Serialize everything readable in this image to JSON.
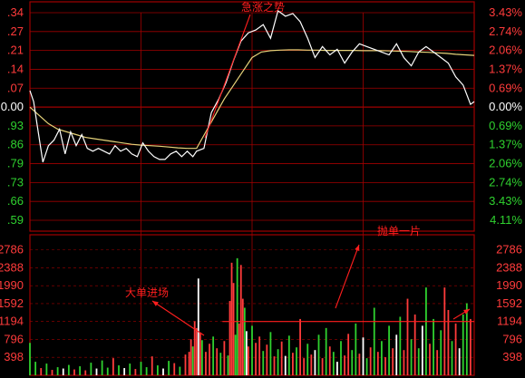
{
  "colors": {
    "background": "#000000",
    "frame": "#a00000",
    "grid": "#a00000",
    "price_line": "#ffffff",
    "avg_line": "#e6d37a",
    "up": "#ff3b3b",
    "down": "#2fd12f",
    "neutral": "#ffffff",
    "annotation": "#ff1e1e"
  },
  "chart_data": {
    "type": "line",
    "price_axis": {
      "base_value": "0.00",
      "left_labels": [
        ".34",
        ".27",
        ".21",
        ".14",
        ".07",
        "0.00",
        ".93",
        ".86",
        ".79",
        ".73",
        ".66",
        ".59"
      ],
      "right_labels": [
        "3.43%",
        "2.74%",
        "2.06%",
        "1.37%",
        "0.69%",
        "0.00%",
        "0.69%",
        "1.37%",
        "2.06%",
        "2.74%",
        "3.43%",
        "4.11%"
      ],
      "percent_range": [
        -4.11,
        3.43
      ]
    },
    "volume_axis": {
      "labels": [
        "2786",
        "2388",
        "1990",
        "1592",
        "1194",
        "796",
        "398"
      ],
      "max": 3000
    },
    "price_series": {
      "name": "",
      "x": [
        0,
        2,
        4,
        7,
        10,
        13,
        16,
        19,
        22,
        25,
        28,
        31,
        34,
        37,
        40,
        43,
        46,
        49,
        52,
        55,
        58,
        61,
        64,
        67,
        70,
        73,
        76,
        79,
        82,
        85,
        88,
        90,
        94,
        98,
        102,
        106,
        110,
        114,
        118,
        122,
        126,
        130,
        134,
        138,
        142,
        146,
        150,
        154,
        158,
        162,
        166,
        170,
        174,
        178,
        182,
        186,
        190,
        194,
        198,
        202,
        206,
        210,
        214,
        218,
        222,
        226,
        230,
        234,
        238,
        240
      ],
      "values": [
        0.6,
        0.2,
        -0.7,
        -2.0,
        -1.4,
        -1.2,
        -0.8,
        -1.7,
        -0.9,
        -1.4,
        -1.0,
        -1.5,
        -1.6,
        -1.5,
        -1.6,
        -1.7,
        -1.4,
        -1.6,
        -1.5,
        -1.7,
        -1.8,
        -1.3,
        -1.6,
        -1.8,
        -1.9,
        -1.9,
        -1.7,
        -1.6,
        -1.8,
        -1.6,
        -1.8,
        -1.6,
        -1.5,
        -0.2,
        0.3,
        0.9,
        1.7,
        2.4,
        2.7,
        2.8,
        3.0,
        2.5,
        3.5,
        3.3,
        3.4,
        3.1,
        2.5,
        1.8,
        2.2,
        1.9,
        2.1,
        1.6,
        2.0,
        2.3,
        2.2,
        2.1,
        2.0,
        1.9,
        2.3,
        1.8,
        1.5,
        2.0,
        2.2,
        2.0,
        1.8,
        1.6,
        1.1,
        0.8,
        0.1,
        0.2
      ]
    },
    "avg_series": {
      "name": "",
      "x": [
        0,
        5,
        10,
        15,
        20,
        25,
        30,
        35,
        40,
        45,
        50,
        55,
        60,
        65,
        70,
        75,
        80,
        85,
        90,
        95,
        100,
        105,
        110,
        115,
        120,
        125,
        130,
        135,
        140,
        145,
        150,
        155,
        160,
        165,
        170,
        175,
        180,
        185,
        190,
        195,
        200,
        205,
        210,
        215,
        220,
        225,
        230,
        235,
        240
      ],
      "values": [
        0.0,
        -0.3,
        -0.6,
        -0.8,
        -0.9,
        -1.0,
        -1.1,
        -1.15,
        -1.2,
        -1.25,
        -1.3,
        -1.35,
        -1.38,
        -1.4,
        -1.42,
        -1.45,
        -1.48,
        -1.5,
        -1.5,
        -0.9,
        -0.3,
        0.3,
        0.8,
        1.3,
        1.8,
        2.0,
        2.05,
        2.07,
        2.08,
        2.08,
        2.07,
        2.07,
        2.06,
        2.06,
        2.06,
        2.06,
        2.05,
        2.05,
        2.05,
        2.04,
        2.03,
        2.02,
        2.0,
        1.99,
        1.97,
        1.95,
        1.92,
        1.9,
        1.88
      ]
    },
    "volume_threshold": 1194,
    "volume_bars": [
      {
        "x": 0,
        "v": 720,
        "c": "down"
      },
      {
        "x": 3,
        "v": 300,
        "c": "down"
      },
      {
        "x": 6,
        "v": 160,
        "c": "up"
      },
      {
        "x": 9,
        "v": 260,
        "c": "down"
      },
      {
        "x": 12,
        "v": 120,
        "c": "up"
      },
      {
        "x": 15,
        "v": 180,
        "c": "down"
      },
      {
        "x": 18,
        "v": 150,
        "c": "neutral"
      },
      {
        "x": 21,
        "v": 230,
        "c": "down"
      },
      {
        "x": 24,
        "v": 130,
        "c": "up"
      },
      {
        "x": 27,
        "v": 200,
        "c": "down"
      },
      {
        "x": 30,
        "v": 110,
        "c": "up"
      },
      {
        "x": 33,
        "v": 280,
        "c": "down"
      },
      {
        "x": 36,
        "v": 150,
        "c": "neutral"
      },
      {
        "x": 39,
        "v": 330,
        "c": "down"
      },
      {
        "x": 42,
        "v": 170,
        "c": "down"
      },
      {
        "x": 45,
        "v": 380,
        "c": "up"
      },
      {
        "x": 48,
        "v": 220,
        "c": "down"
      },
      {
        "x": 51,
        "v": 160,
        "c": "neutral"
      },
      {
        "x": 54,
        "v": 260,
        "c": "down"
      },
      {
        "x": 57,
        "v": 140,
        "c": "up"
      },
      {
        "x": 60,
        "v": 300,
        "c": "down"
      },
      {
        "x": 63,
        "v": 180,
        "c": "down"
      },
      {
        "x": 66,
        "v": 420,
        "c": "up"
      },
      {
        "x": 69,
        "v": 220,
        "c": "down"
      },
      {
        "x": 72,
        "v": 150,
        "c": "neutral"
      },
      {
        "x": 75,
        "v": 320,
        "c": "down"
      },
      {
        "x": 78,
        "v": 270,
        "c": "up"
      },
      {
        "x": 81,
        "v": 190,
        "c": "down"
      },
      {
        "x": 84,
        "v": 460,
        "c": "up"
      },
      {
        "x": 86,
        "v": 520,
        "c": "up"
      },
      {
        "x": 87,
        "v": 800,
        "c": "up"
      },
      {
        "x": 88,
        "v": 640,
        "c": "down"
      },
      {
        "x": 89,
        "v": 1200,
        "c": "up"
      },
      {
        "x": 90,
        "v": 1050,
        "c": "up"
      },
      {
        "x": 91,
        "v": 2150,
        "c": "neutral"
      },
      {
        "x": 92,
        "v": 950,
        "c": "up"
      },
      {
        "x": 93,
        "v": 780,
        "c": "down"
      },
      {
        "x": 95,
        "v": 520,
        "c": "up"
      },
      {
        "x": 97,
        "v": 700,
        "c": "up"
      },
      {
        "x": 99,
        "v": 860,
        "c": "down"
      },
      {
        "x": 101,
        "v": 600,
        "c": "up"
      },
      {
        "x": 103,
        "v": 500,
        "c": "down"
      },
      {
        "x": 105,
        "v": 760,
        "c": "up"
      },
      {
        "x": 107,
        "v": 440,
        "c": "down"
      },
      {
        "x": 108,
        "v": 1650,
        "c": "up"
      },
      {
        "x": 109,
        "v": 2500,
        "c": "up"
      },
      {
        "x": 110,
        "v": 2050,
        "c": "up"
      },
      {
        "x": 111,
        "v": 900,
        "c": "down"
      },
      {
        "x": 112,
        "v": 2600,
        "c": "down"
      },
      {
        "x": 113,
        "v": 1150,
        "c": "up"
      },
      {
        "x": 114,
        "v": 2450,
        "c": "up"
      },
      {
        "x": 115,
        "v": 1700,
        "c": "up"
      },
      {
        "x": 116,
        "v": 1500,
        "c": "down"
      },
      {
        "x": 117,
        "v": 980,
        "c": "neutral"
      },
      {
        "x": 118,
        "v": 640,
        "c": "up"
      },
      {
        "x": 120,
        "v": 1100,
        "c": "down"
      },
      {
        "x": 122,
        "v": 720,
        "c": "up"
      },
      {
        "x": 124,
        "v": 860,
        "c": "up"
      },
      {
        "x": 126,
        "v": 540,
        "c": "down"
      },
      {
        "x": 128,
        "v": 680,
        "c": "up"
      },
      {
        "x": 130,
        "v": 960,
        "c": "down"
      },
      {
        "x": 132,
        "v": 420,
        "c": "up"
      },
      {
        "x": 134,
        "v": 580,
        "c": "down"
      },
      {
        "x": 136,
        "v": 750,
        "c": "up"
      },
      {
        "x": 138,
        "v": 430,
        "c": "neutral"
      },
      {
        "x": 140,
        "v": 880,
        "c": "down"
      },
      {
        "x": 142,
        "v": 500,
        "c": "up"
      },
      {
        "x": 144,
        "v": 620,
        "c": "down"
      },
      {
        "x": 146,
        "v": 1250,
        "c": "up"
      },
      {
        "x": 148,
        "v": 380,
        "c": "up"
      },
      {
        "x": 150,
        "v": 700,
        "c": "down"
      },
      {
        "x": 152,
        "v": 460,
        "c": "up"
      },
      {
        "x": 154,
        "v": 560,
        "c": "neutral"
      },
      {
        "x": 156,
        "v": 900,
        "c": "down"
      },
      {
        "x": 158,
        "v": 380,
        "c": "up"
      },
      {
        "x": 160,
        "v": 1050,
        "c": "down"
      },
      {
        "x": 162,
        "v": 640,
        "c": "up"
      },
      {
        "x": 164,
        "v": 520,
        "c": "down"
      },
      {
        "x": 166,
        "v": 300,
        "c": "neutral"
      },
      {
        "x": 168,
        "v": 760,
        "c": "down"
      },
      {
        "x": 170,
        "v": 440,
        "c": "up"
      },
      {
        "x": 172,
        "v": 920,
        "c": "up"
      },
      {
        "x": 174,
        "v": 560,
        "c": "down"
      },
      {
        "x": 176,
        "v": 1150,
        "c": "down"
      },
      {
        "x": 178,
        "v": 480,
        "c": "up"
      },
      {
        "x": 180,
        "v": 840,
        "c": "neutral"
      },
      {
        "x": 182,
        "v": 380,
        "c": "down"
      },
      {
        "x": 184,
        "v": 620,
        "c": "up"
      },
      {
        "x": 186,
        "v": 1500,
        "c": "down"
      },
      {
        "x": 188,
        "v": 520,
        "c": "up"
      },
      {
        "x": 190,
        "v": 760,
        "c": "down"
      },
      {
        "x": 192,
        "v": 400,
        "c": "up"
      },
      {
        "x": 194,
        "v": 1100,
        "c": "down"
      },
      {
        "x": 196,
        "v": 600,
        "c": "up"
      },
      {
        "x": 198,
        "v": 900,
        "c": "neutral"
      },
      {
        "x": 200,
        "v": 1300,
        "c": "down"
      },
      {
        "x": 202,
        "v": 560,
        "c": "up"
      },
      {
        "x": 204,
        "v": 1700,
        "c": "up"
      },
      {
        "x": 206,
        "v": 800,
        "c": "down"
      },
      {
        "x": 208,
        "v": 1350,
        "c": "up"
      },
      {
        "x": 210,
        "v": 600,
        "c": "down"
      },
      {
        "x": 212,
        "v": 1100,
        "c": "neutral"
      },
      {
        "x": 214,
        "v": 1950,
        "c": "down"
      },
      {
        "x": 216,
        "v": 700,
        "c": "up"
      },
      {
        "x": 218,
        "v": 1250,
        "c": "down"
      },
      {
        "x": 220,
        "v": 560,
        "c": "up"
      },
      {
        "x": 222,
        "v": 1000,
        "c": "down"
      },
      {
        "x": 224,
        "v": 1950,
        "c": "up"
      },
      {
        "x": 226,
        "v": 1450,
        "c": "up"
      },
      {
        "x": 228,
        "v": 760,
        "c": "down"
      },
      {
        "x": 230,
        "v": 1150,
        "c": "up"
      },
      {
        "x": 232,
        "v": 600,
        "c": "neutral"
      },
      {
        "x": 234,
        "v": 1350,
        "c": "down"
      },
      {
        "x": 236,
        "v": 1600,
        "c": "down"
      },
      {
        "x": 238,
        "v": 1250,
        "c": "up"
      }
    ],
    "annotations": {
      "rally": "急涨之势",
      "big_buy": "大单进场",
      "dump": "抛单一片"
    }
  }
}
